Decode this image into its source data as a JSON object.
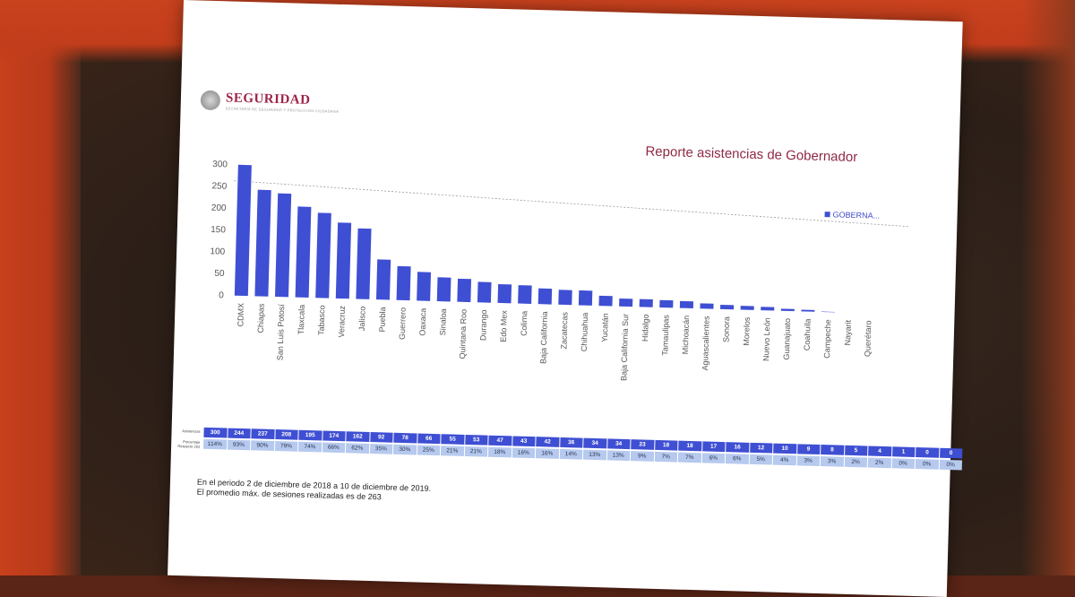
{
  "slide": {
    "logo_text": "SEGURIDAD",
    "logo_subtext": "SECRETARÍA DE SEGURIDAD Y PROTECCIÓN CIUDADANA",
    "title": "Reporte asistencias de Gobernador",
    "legend_label": "GOBERNA...",
    "row_label_attendance": "Asistencias",
    "row_label_percentage": "Porcentaje Respecto 263",
    "footnote_line1": "En el periodo 2 de diciembre de 2018 a 10 de diciembre de 2019.",
    "footnote_line2": "El promedio máx. de sesiones realizadas es de 263"
  },
  "colors": {
    "bar": "#3f4fd3",
    "title": "#8e2a45",
    "table_head": "#3f4fd3",
    "table_pct": "#b6c9ee"
  },
  "chart_data": {
    "type": "bar",
    "title": "Reporte asistencias de Gobernador",
    "xlabel": "",
    "ylabel": "",
    "ylim": [
      0,
      300
    ],
    "yticks": [
      0,
      50,
      100,
      150,
      200,
      250,
      300
    ],
    "reference_line": 263,
    "legend_position": "right",
    "categories": [
      "CDMX",
      "Chiapas",
      "San Luis Potosí",
      "Tlaxcala",
      "Tabasco",
      "Veracruz",
      "Jalisco",
      "Puebla",
      "Guerrero",
      "Oaxaca",
      "Sinaloa",
      "Quintana Roo",
      "Durango",
      "Edo Mex",
      "Colima",
      "Baja California",
      "Zacatecas",
      "Chihuahua",
      "Yucatán",
      "Baja California Sur",
      "Hidalgo",
      "Tamaulipas",
      "Michoacán",
      "Aguascalientes",
      "Sonora",
      "Morelos",
      "Nuevo León",
      "Guanajuato",
      "Coahuila",
      "Campeche",
      "Nayarit",
      "Querétaro"
    ],
    "series": [
      {
        "name": "GOBERNA...",
        "values": [
          300,
          244,
          237,
          208,
          195,
          174,
          162,
          92,
          78,
          66,
          55,
          53,
          47,
          43,
          42,
          36,
          34,
          34,
          23,
          18,
          18,
          17,
          16,
          12,
          10,
          9,
          8,
          5,
          4,
          1,
          0,
          0
        ]
      }
    ],
    "percentages": [
      "114%",
      "93%",
      "90%",
      "79%",
      "74%",
      "66%",
      "62%",
      "35%",
      "30%",
      "25%",
      "21%",
      "21%",
      "18%",
      "16%",
      "16%",
      "14%",
      "13%",
      "13%",
      "9%",
      "7%",
      "7%",
      "6%",
      "6%",
      "5%",
      "4%",
      "3%",
      "3%",
      "2%",
      "2%",
      "0%",
      "0%",
      "0%"
    ]
  }
}
